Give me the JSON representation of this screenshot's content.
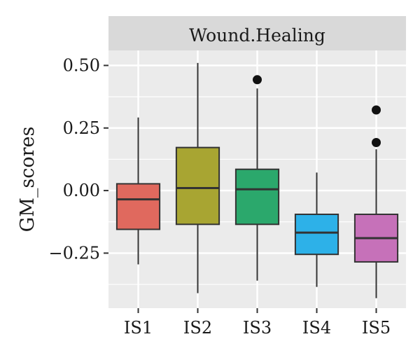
{
  "chart_data": {
    "type": "box",
    "facet_title": "Wound.Healing",
    "xlabel": "",
    "ylabel": "GM_scores",
    "ylim": [
      -0.47,
      0.56
    ],
    "y_ticks": [
      0.5,
      0.25,
      0.0,
      -0.25
    ],
    "y_tick_labels": [
      "0.50",
      "0.25",
      "0.00",
      "−0.25"
    ],
    "y_minor_ticks": [
      0.375,
      0.125,
      -0.125,
      -0.375
    ],
    "grid": true,
    "legend": "none",
    "categories": [
      "IS1",
      "IS2",
      "IS3",
      "IS4",
      "IS5"
    ],
    "boxes": [
      {
        "name": "IS1",
        "whisker_low": -0.295,
        "q1": -0.155,
        "median": -0.035,
        "q3": 0.027,
        "whisker_high": 0.292,
        "outliers": [],
        "color": "#E0695E"
      },
      {
        "name": "IS2",
        "whisker_low": -0.41,
        "q1": -0.135,
        "median": 0.01,
        "q3": 0.172,
        "whisker_high": 0.51,
        "outliers": [],
        "color": "#A8A532"
      },
      {
        "name": "IS3",
        "whisker_low": -0.36,
        "q1": -0.135,
        "median": 0.005,
        "q3": 0.085,
        "whisker_high": 0.408,
        "outliers": [
          0.443
        ],
        "color": "#2BA86C"
      },
      {
        "name": "IS4",
        "whisker_low": -0.385,
        "q1": -0.255,
        "median": -0.168,
        "q3": -0.095,
        "whisker_high": 0.072,
        "outliers": [],
        "color": "#2DB1E8"
      },
      {
        "name": "IS5",
        "whisker_low": -0.43,
        "q1": -0.285,
        "median": -0.19,
        "q3": -0.095,
        "whisker_high": 0.165,
        "outliers": [
          0.322,
          0.192
        ],
        "color": "#C671B9"
      }
    ]
  }
}
